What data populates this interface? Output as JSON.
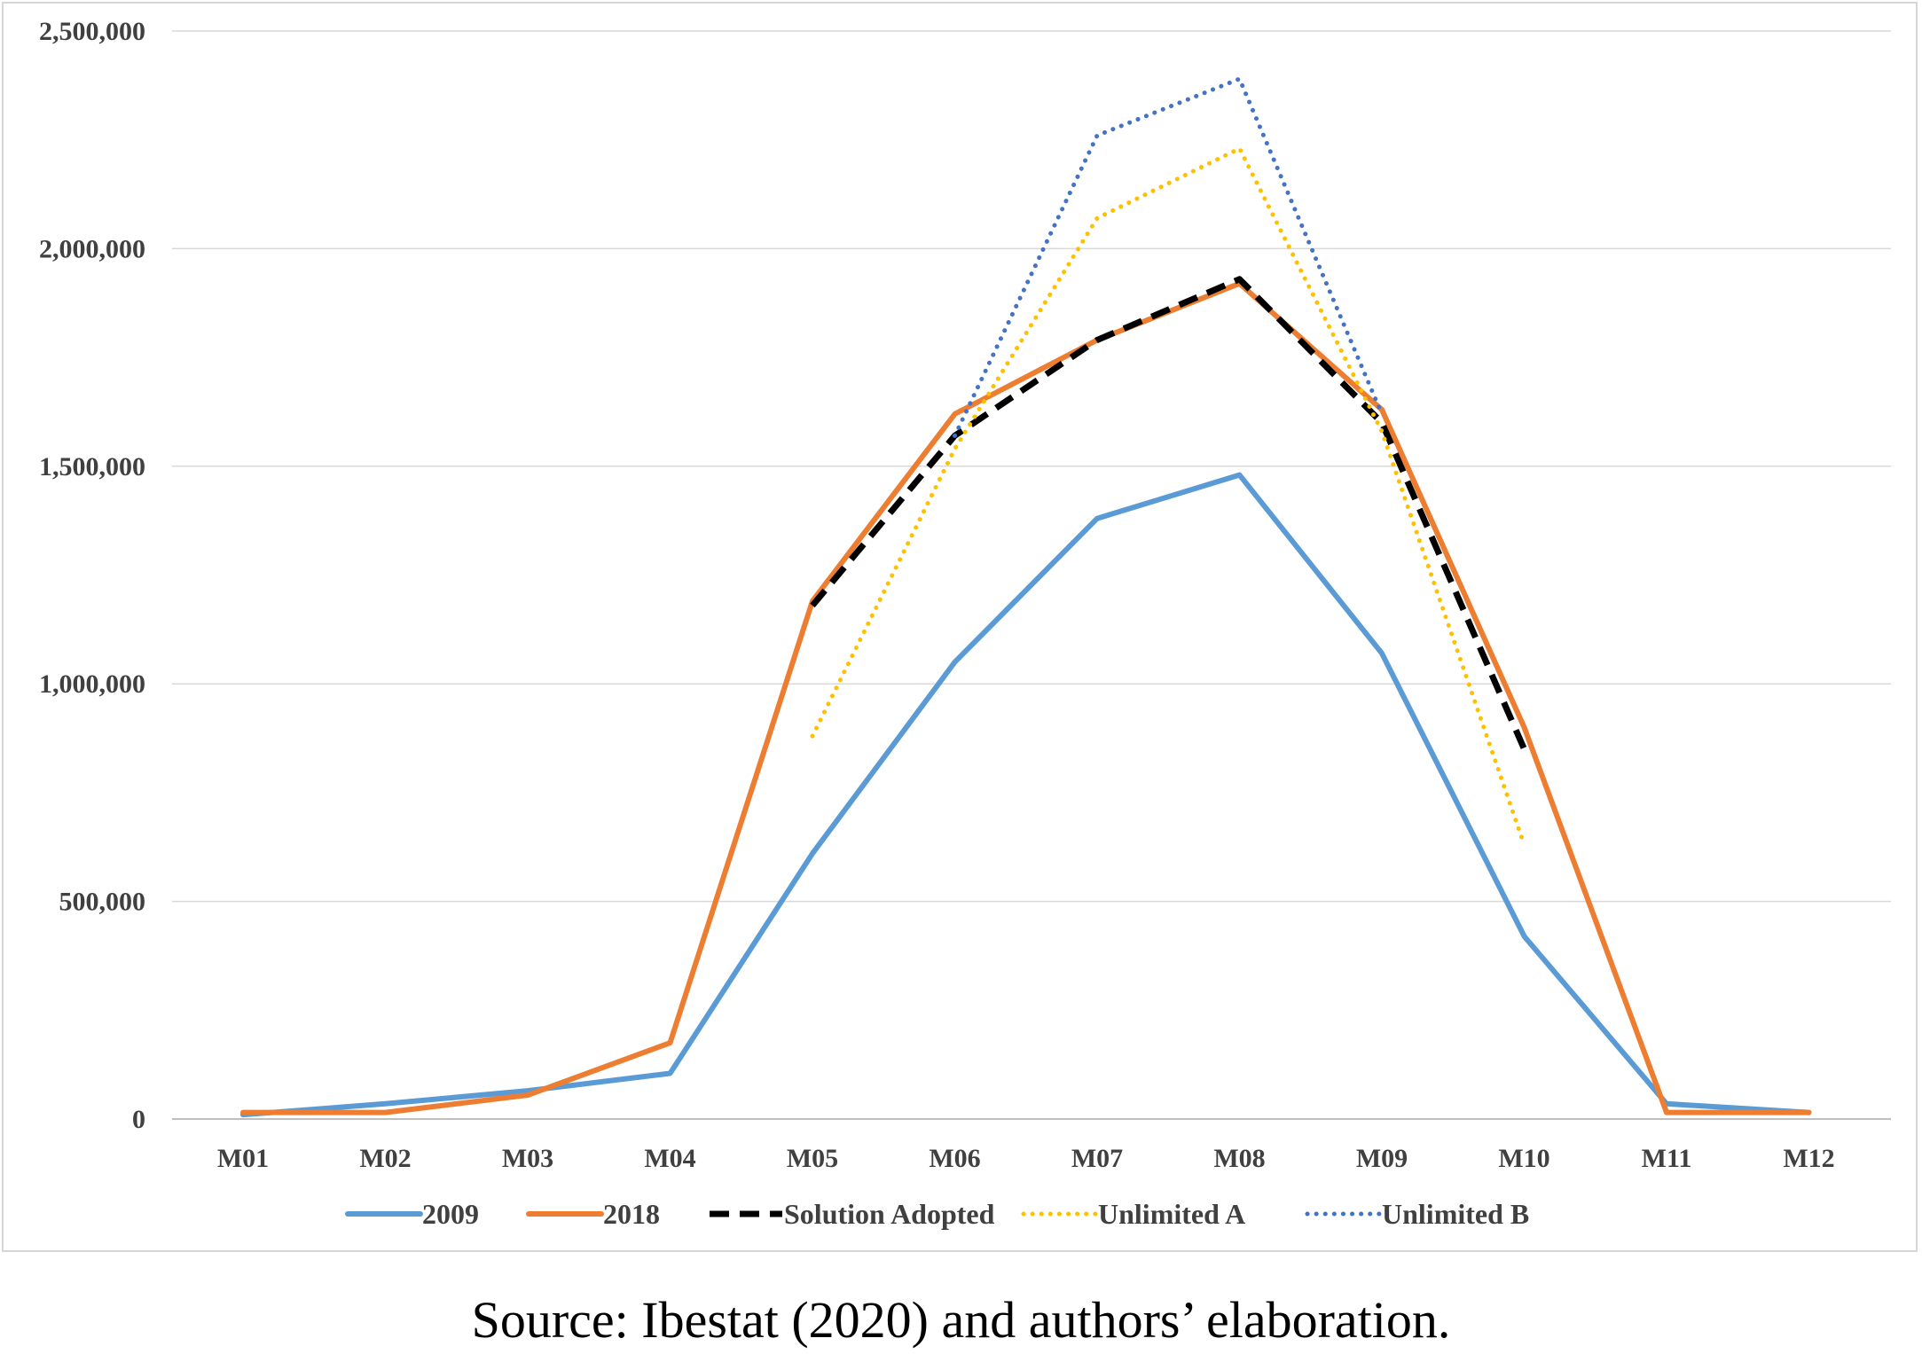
{
  "chart_data": {
    "type": "line",
    "categories": [
      "M01",
      "M02",
      "M03",
      "M04",
      "M05",
      "M06",
      "M07",
      "M08",
      "M09",
      "M10",
      "M11",
      "M12"
    ],
    "ylim": [
      0,
      2500000
    ],
    "y_ticks": [
      0,
      500000,
      1000000,
      1500000,
      2000000,
      2500000
    ],
    "y_tick_labels": [
      "0",
      "500,000",
      "1,000,000",
      "1,500,000",
      "2,000,000",
      "2,500,000"
    ],
    "grid": true,
    "legend_position": "bottom",
    "series": [
      {
        "name": "2009",
        "color": "#5b9bd5",
        "style": "solid",
        "values": [
          10000,
          35000,
          65000,
          105000,
          610000,
          1050000,
          1380000,
          1480000,
          1070000,
          420000,
          35000,
          15000
        ]
      },
      {
        "name": "2018",
        "color": "#ed7d31",
        "style": "solid",
        "values": [
          15000,
          15000,
          55000,
          175000,
          1190000,
          1620000,
          1790000,
          1920000,
          1630000,
          900000,
          15000,
          15000
        ]
      },
      {
        "name": "Solution Adopted",
        "color": "#000000",
        "style": "dashed",
        "values": [
          null,
          null,
          null,
          null,
          1180000,
          1570000,
          1790000,
          1930000,
          1600000,
          850000,
          null,
          null
        ]
      },
      {
        "name": "Unlimited A",
        "color": "#ffc000",
        "style": "dotted",
        "values": [
          null,
          null,
          null,
          null,
          880000,
          1540000,
          2070000,
          2230000,
          1580000,
          630000,
          null,
          null
        ]
      },
      {
        "name": "Unlimited B",
        "color": "#4472c4",
        "style": "dotted",
        "values": [
          null,
          null,
          null,
          null,
          null,
          1570000,
          2260000,
          2390000,
          1620000,
          null,
          null,
          null
        ]
      }
    ]
  },
  "caption": "Source: Ibestat (2020) and authors’ elaboration."
}
